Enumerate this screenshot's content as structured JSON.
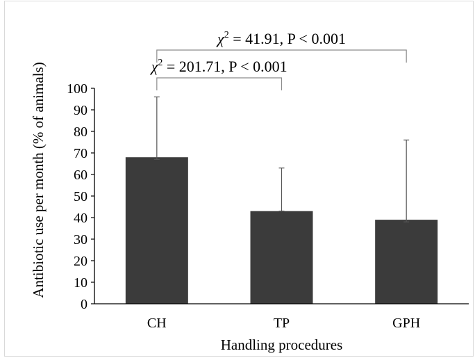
{
  "chart_data": {
    "type": "bar",
    "title": "",
    "xlabel": "Handling procedures",
    "ylabel": "Antibiotic use per month (% of animals)",
    "categories": [
      "CH",
      "TP",
      "GPH"
    ],
    "values": [
      68,
      43,
      39
    ],
    "error_bars": {
      "upper": [
        96,
        63,
        76
      ],
      "lower": [
        67,
        43,
        38
      ]
    },
    "ylim": [
      0,
      100
    ],
    "yticks": [
      "0",
      "10",
      "20",
      "30",
      "40",
      "50",
      "60",
      "70",
      "80",
      "90",
      "100"
    ],
    "legend": "none",
    "grid": false,
    "colors": {
      "bar": "#3b3b3b",
      "error_bar": "#555555",
      "bracket": "#8c8c8c",
      "axis": "#000000"
    },
    "annotations": [
      {
        "symbol": "χ",
        "superscript": "2",
        "text": " = 41.91, P < 0.001",
        "from": "CH",
        "to": "GPH"
      },
      {
        "symbol": "χ",
        "superscript": "2",
        "text": " = 201.71, P < 0.001",
        "from": "CH",
        "to": "TP"
      }
    ]
  }
}
